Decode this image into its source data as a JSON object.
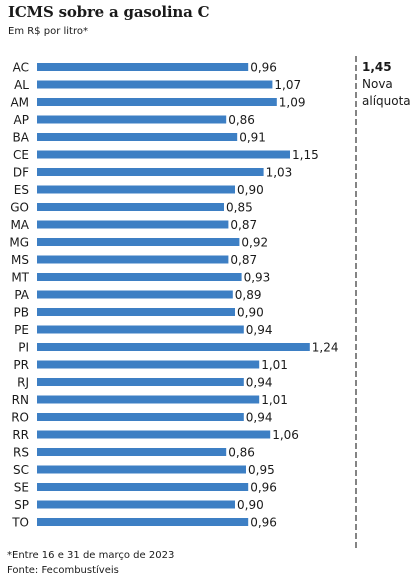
{
  "chart_data": {
    "type": "bar",
    "orientation": "horizontal",
    "title": "ICMS sobre a gasolina C",
    "subtitle": "Em R$ por litro*",
    "categories": [
      "AC",
      "AL",
      "AM",
      "AP",
      "BA",
      "CE",
      "DF",
      "ES",
      "GO",
      "MA",
      "MG",
      "MS",
      "MT",
      "PA",
      "PB",
      "PE",
      "PI",
      "PR",
      "RJ",
      "RN",
      "RO",
      "RR",
      "RS",
      "SC",
      "SE",
      "SP",
      "TO"
    ],
    "values": [
      0.96,
      1.07,
      1.09,
      0.86,
      0.91,
      1.15,
      1.03,
      0.9,
      0.85,
      0.87,
      0.92,
      0.87,
      0.93,
      0.89,
      0.9,
      0.94,
      1.24,
      1.01,
      0.94,
      1.01,
      0.94,
      1.06,
      0.86,
      0.95,
      0.96,
      0.9,
      0.96
    ],
    "value_labels": [
      "0,96",
      "1,07",
      "1,09",
      "0,86",
      "0,91",
      "1,15",
      "1,03",
      "0,90",
      "0,85",
      "0,87",
      "0,92",
      "0,87",
      "0,93",
      "0,89",
      "0,90",
      "0,94",
      "1,24",
      "1,01",
      "0,94",
      "1,01",
      "0,94",
      "1,06",
      "0,86",
      "0,95",
      "0,96",
      "0,90",
      "0,96"
    ],
    "xlim": [
      0,
      1.45
    ],
    "bar_color": "#3d7fc4",
    "annotation": {
      "value": 1.45,
      "value_label": "1,45",
      "text_line1": "Nova",
      "text_line2": "alíquota",
      "line_style": "dashed",
      "line_color": "#333333"
    },
    "footnote": "*Entre 16 e 31 de março de 2023",
    "source": "Fonte: Fecombustíveis"
  }
}
